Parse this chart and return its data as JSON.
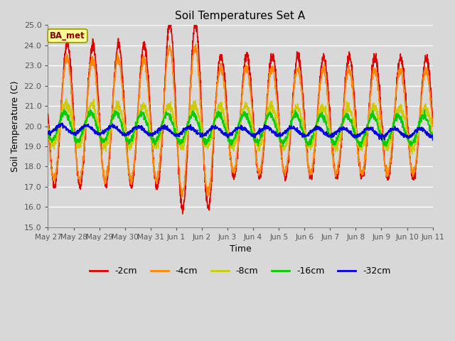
{
  "title": "Soil Temperatures Set A",
  "xlabel": "Time",
  "ylabel": "Soil Temperature (C)",
  "ylim": [
    15.0,
    25.0
  ],
  "yticks": [
    15.0,
    16.0,
    17.0,
    18.0,
    19.0,
    20.0,
    21.0,
    22.0,
    23.0,
    24.0,
    25.0
  ],
  "x_labels": [
    "May 27",
    "May 28",
    "May 29",
    "May 30",
    "May 31",
    "Jun 1",
    "Jun 2",
    "Jun 3",
    "Jun 4",
    "Jun 5",
    "Jun 6",
    "Jun 7",
    "Jun 8",
    "Jun 9",
    "Jun 10",
    "Jun 11"
  ],
  "bg_color": "#d8d8d8",
  "plot_bg_color": "#d8d8d8",
  "grid_color": "#ffffff",
  "legend_label": "BA_met",
  "legend_bg": "#ffff99",
  "legend_border": "#999900",
  "series": [
    {
      "label": "-2cm",
      "color": "#dd0000",
      "amplitude": 3.5,
      "phase": 0.0,
      "mean": 20.5,
      "lag": 0.0
    },
    {
      "label": "-4cm",
      "color": "#ff8800",
      "amplitude": 3.0,
      "phase": 0.08,
      "mean": 20.3,
      "lag": 0.0
    },
    {
      "label": "-8cm",
      "color": "#cccc00",
      "amplitude": 1.0,
      "phase": 0.25,
      "mean": 20.0,
      "lag": 0.0
    },
    {
      "label": "-16cm",
      "color": "#00cc00",
      "amplitude": 0.7,
      "phase": 0.6,
      "mean": 19.9,
      "lag": 0.0
    },
    {
      "label": "-32cm",
      "color": "#0000dd",
      "amplitude": 0.2,
      "phase": 1.5,
      "mean": 19.75,
      "lag": 0.0
    }
  ]
}
